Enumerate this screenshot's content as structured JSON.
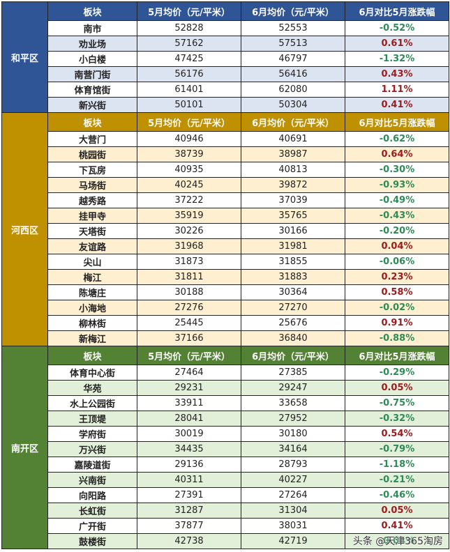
{
  "headers": {
    "block": "板块",
    "may_price": "5月均价（元/平米）",
    "jun_price": "6月均价（元/平米）",
    "change": "6月对比5月涨跌幅"
  },
  "colors": {
    "heping": "#2f5597",
    "hexi": "#bf9000",
    "nankai": "#548235",
    "up": "#9b1c1c",
    "down": "#2e8b57"
  },
  "sections": [
    {
      "district": "和平区",
      "rows": [
        {
          "name": "南市",
          "may": "52828",
          "jun": "52553",
          "chg": "-0.52%"
        },
        {
          "name": "劝业场",
          "may": "57162",
          "jun": "57513",
          "chg": "0.61%"
        },
        {
          "name": "小白楼",
          "may": "47425",
          "jun": "46797",
          "chg": "-1.32%"
        },
        {
          "name": "南营门街",
          "may": "56176",
          "jun": "56416",
          "chg": "0.43%"
        },
        {
          "name": "体育馆街",
          "may": "61401",
          "jun": "62080",
          "chg": "1.11%"
        },
        {
          "name": "新兴街",
          "may": "50101",
          "jun": "50304",
          "chg": "0.41%"
        }
      ]
    },
    {
      "district": "河西区",
      "rows": [
        {
          "name": "大营门",
          "may": "40946",
          "jun": "40691",
          "chg": "-0.62%"
        },
        {
          "name": "桃园街",
          "may": "38739",
          "jun": "38987",
          "chg": "0.64%"
        },
        {
          "name": "下瓦房",
          "may": "40935",
          "jun": "40813",
          "chg": "-0.30%"
        },
        {
          "name": "马场街",
          "may": "40245",
          "jun": "39872",
          "chg": "-0.93%"
        },
        {
          "name": "越秀路",
          "may": "37222",
          "jun": "37039",
          "chg": "-0.49%"
        },
        {
          "name": "挂甲寺",
          "may": "35919",
          "jun": "35765",
          "chg": "-0.43%"
        },
        {
          "name": "天塔街",
          "may": "30226",
          "jun": "30166",
          "chg": "-0.20%"
        },
        {
          "name": "友谊路",
          "may": "31968",
          "jun": "31981",
          "chg": "0.04%"
        },
        {
          "name": "尖山",
          "may": "31873",
          "jun": "31855",
          "chg": "-0.06%"
        },
        {
          "name": "梅江",
          "may": "31811",
          "jun": "31883",
          "chg": "0.23%"
        },
        {
          "name": "陈塘庄",
          "may": "30188",
          "jun": "30364",
          "chg": "0.58%"
        },
        {
          "name": "小海地",
          "may": "27276",
          "jun": "27270",
          "chg": "-0.02%"
        },
        {
          "name": "柳林街",
          "may": "25445",
          "jun": "25676",
          "chg": "0.91%"
        },
        {
          "name": "新梅江",
          "may": "37166",
          "jun": "36840",
          "chg": "-0.88%"
        }
      ]
    },
    {
      "district": "南开区",
      "rows": [
        {
          "name": "体育中心街",
          "may": "27464",
          "jun": "27385",
          "chg": "-0.29%"
        },
        {
          "name": "华苑",
          "may": "29231",
          "jun": "29247",
          "chg": "0.05%"
        },
        {
          "name": "水上公园街",
          "may": "33911",
          "jun": "33658",
          "chg": "-0.75%"
        },
        {
          "name": "王顶堤",
          "may": "28041",
          "jun": "27952",
          "chg": "-0.32%"
        },
        {
          "name": "学府街",
          "may": "30019",
          "jun": "30180",
          "chg": "0.54%"
        },
        {
          "name": "万兴街",
          "may": "34435",
          "jun": "34164",
          "chg": "-0.79%"
        },
        {
          "name": "嘉陵道街",
          "may": "29136",
          "jun": "28793",
          "chg": "-1.18%"
        },
        {
          "name": "兴南街",
          "may": "40311",
          "jun": "40227",
          "chg": "-0.21%"
        },
        {
          "name": "向阳路",
          "may": "27391",
          "jun": "27264",
          "chg": "-0.46%"
        },
        {
          "name": "长虹街",
          "may": "31287",
          "jun": "31304",
          "chg": "0.05%"
        },
        {
          "name": "广开街",
          "may": "37877",
          "jun": "38031",
          "chg": "0.41%"
        },
        {
          "name": "鼓楼街",
          "may": "42738",
          "jun": "42719",
          "chg": "-0.04%"
        }
      ]
    }
  ],
  "watermark": "头条 @天津365淘房"
}
